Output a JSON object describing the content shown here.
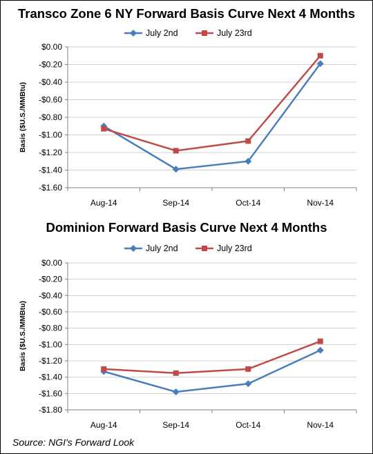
{
  "chart_data": [
    {
      "type": "line",
      "title": "Transco Zone 6 NY Forward Basis Curve Next 4 Months",
      "ylabel": "Basis ($U.S./MMBtu)",
      "categories": [
        "Aug-14",
        "Sep-14",
        "Oct-14",
        "Nov-14"
      ],
      "yticks": [
        "$0.00",
        "-$0.20",
        "-$0.40",
        "-$0.60",
        "-$0.80",
        "-$1.00",
        "-$1.20",
        "-$1.40",
        "-$1.60"
      ],
      "ylim": [
        -1.6,
        0
      ],
      "grid": true,
      "legend": "top",
      "series": [
        {
          "name": "July 2nd",
          "values": [
            -0.9,
            -1.39,
            -1.3,
            -0.19
          ],
          "color": "#4a7ebb",
          "marker": "diamond"
        },
        {
          "name": "July 23rd",
          "values": [
            -0.93,
            -1.18,
            -1.07,
            -0.1
          ],
          "color": "#be4b48",
          "marker": "square"
        }
      ]
    },
    {
      "type": "line",
      "title": "Dominion Forward Basis Curve Next 4 Months",
      "ylabel": "Basis ($U.S./MMBtu)",
      "categories": [
        "Aug-14",
        "Sep-14",
        "Oct-14",
        "Nov-14"
      ],
      "yticks": [
        "$0.00",
        "-$0.20",
        "-$0.40",
        "-$0.60",
        "-$0.80",
        "-$1.00",
        "-$1.20",
        "-$1.40",
        "-$1.60",
        "-$1.80"
      ],
      "ylim": [
        -1.8,
        0
      ],
      "grid": true,
      "legend": "top",
      "series": [
        {
          "name": "July 2nd",
          "values": [
            -1.33,
            -1.58,
            -1.48,
            -1.07
          ],
          "color": "#4a7ebb",
          "marker": "diamond"
        },
        {
          "name": "July 23rd",
          "values": [
            -1.3,
            -1.35,
            -1.3,
            -0.96
          ],
          "color": "#be4b48",
          "marker": "square"
        }
      ]
    }
  ],
  "source": "Source: NGI's Forward Look"
}
